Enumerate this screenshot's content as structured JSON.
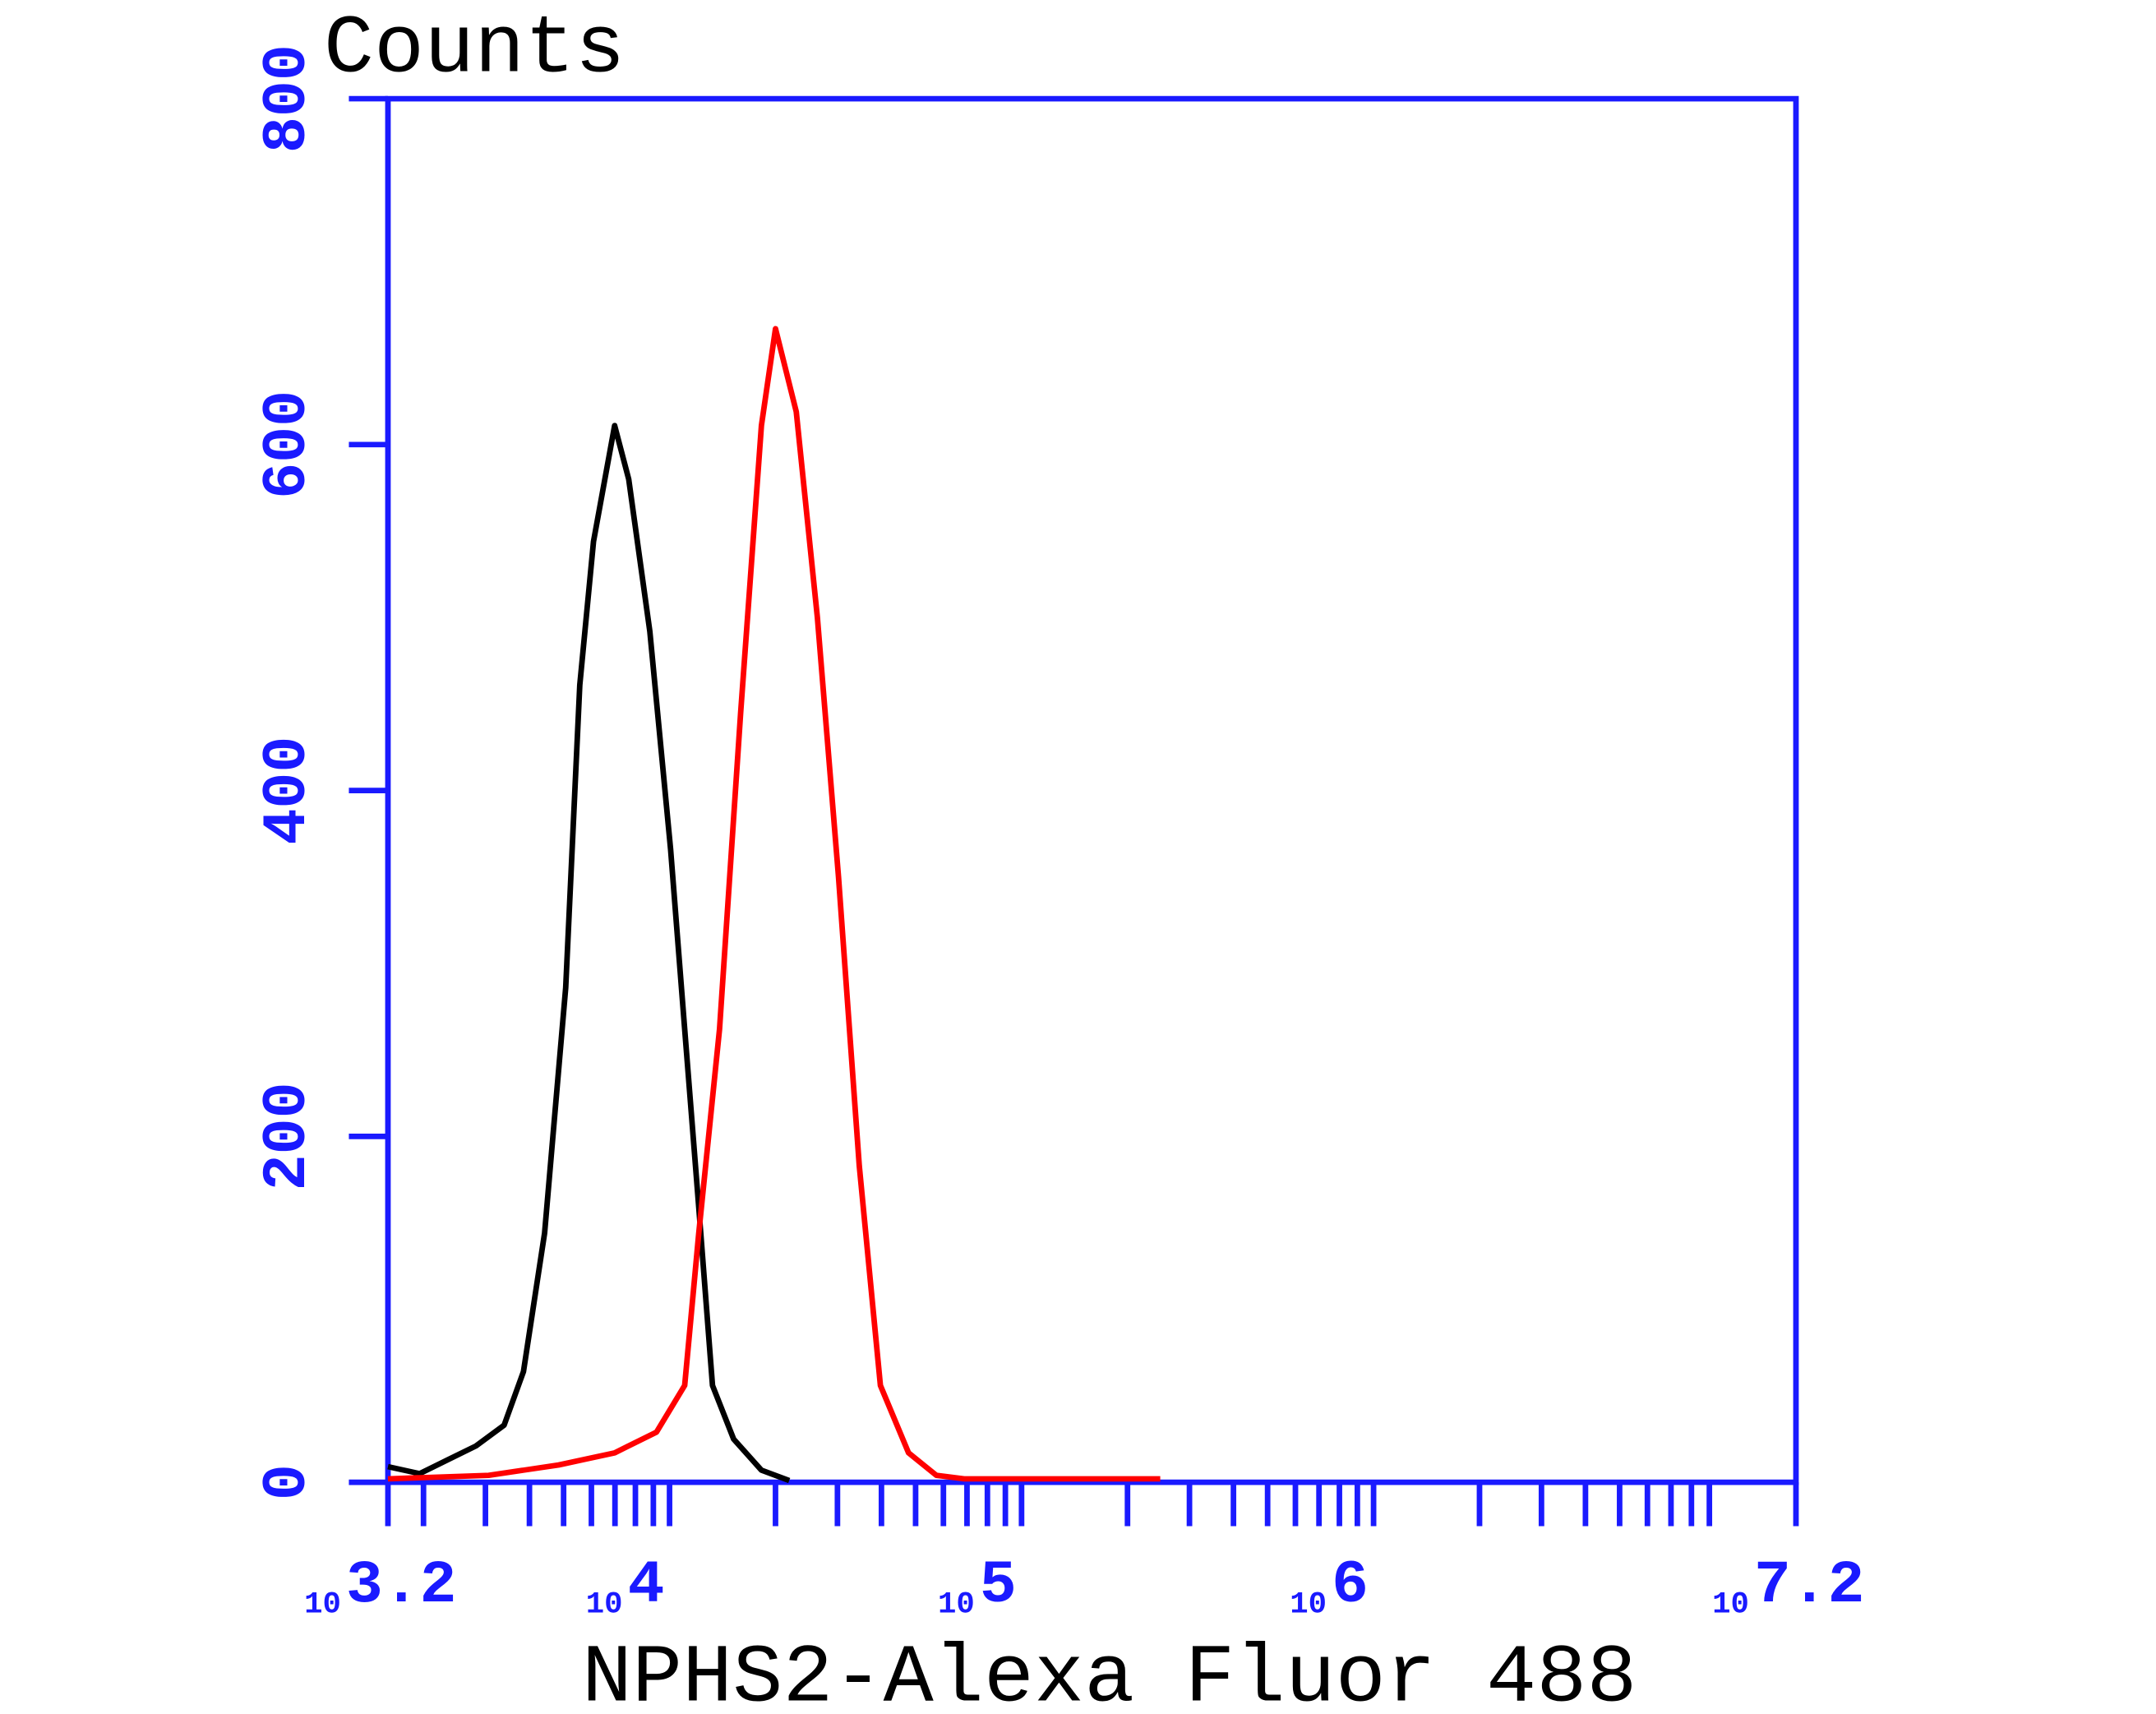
{
  "chart_data": {
    "type": "line",
    "y_label": "Counts",
    "x_label": "NPHS2-Alexa Fluor 488",
    "log_scale": true,
    "tick_base": "10",
    "xlim": [
      3.2,
      7.2
    ],
    "xticks": [
      3.2,
      4,
      5,
      6,
      7.2
    ],
    "xminor_ticks": [
      3.301,
      3.477,
      3.602,
      3.699,
      3.778,
      3.845,
      3.903,
      3.954,
      4.301,
      4.477,
      4.602,
      4.699,
      4.778,
      4.845,
      4.903,
      4.954,
      5.301,
      5.477,
      5.602,
      5.699,
      5.778,
      5.845,
      5.903,
      5.954,
      6.301,
      6.477,
      6.602,
      6.699,
      6.778,
      6.845,
      6.903,
      6.954
    ],
    "ylim": [
      0,
      800
    ],
    "yticks": [
      0,
      200,
      400,
      600,
      800
    ],
    "axis_color": "#1a1aff",
    "series": [
      {
        "color": "#000000",
        "x": [
          3.2,
          3.29,
          3.37,
          3.45,
          3.53,
          3.585,
          3.645,
          3.705,
          3.745,
          3.784,
          3.844,
          3.884,
          3.944,
          4.003,
          4.043,
          4.083,
          4.122,
          4.182,
          4.261,
          4.34
        ],
        "values": [
          9,
          5,
          13,
          21,
          33,
          64,
          144,
          286,
          461,
          544,
          611,
          580,
          492,
          366,
          262,
          159,
          56,
          25,
          7,
          1
        ]
      },
      {
        "color": "#ff0000",
        "x": [
          3.2,
          3.486,
          3.685,
          3.844,
          3.963,
          4.043,
          4.083,
          4.142,
          4.202,
          4.261,
          4.301,
          4.36,
          4.42,
          4.48,
          4.539,
          4.599,
          4.679,
          4.758,
          4.837,
          5.394
        ],
        "values": [
          2,
          4,
          10,
          17,
          29,
          56,
          144,
          262,
          445,
          611,
          667,
          619,
          500,
          350,
          183,
          56,
          17,
          4,
          2,
          2
        ]
      }
    ]
  }
}
